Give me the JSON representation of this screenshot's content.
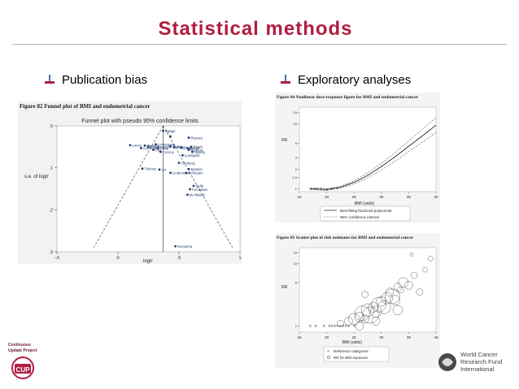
{
  "slide": {
    "title": "Statistical methods",
    "bullets": [
      "Publication bias",
      "Exploratory analyses"
    ],
    "colors": {
      "title": "#b01e41",
      "figure_bg": "#f2f2f2",
      "point": "#1f3a6e"
    }
  },
  "figures": {
    "funnel": {
      "caption": "Figure 82 Funnel plot of BMI and endometrial cancer",
      "inner_title": "Funnel plot with pseudo 95% confidence limits"
    },
    "dose": {
      "caption": "Figure 84 Nonlinear dose-response figure for BMI and endometrial cancer",
      "legend": [
        "Best fitting fractional polynomial",
        "95% confidence interval"
      ]
    },
    "scatter": {
      "caption": "Figure 85 Scatter plot of risk estimates for BMI and endometrial cancer",
      "legend": [
        "Reference categories",
        "RR for BMI exposure"
      ]
    }
  },
  "chart_data": [
    {
      "type": "scatter",
      "title": "Funnel plot with pseudo 95% confidence limits",
      "xlabel": "logrr",
      "ylabel": "s.e. of logrr",
      "xlim": [
        -0.5,
        1
      ],
      "ylim": [
        0.3,
        0
      ],
      "x_ticks": [
        "-.5",
        "0",
        ".5",
        "1"
      ],
      "y_ticks": [
        "0",
        ".1",
        ".2",
        ".3"
      ],
      "reference_line_x": 0.37,
      "points": [
        {
          "x": 0.37,
          "y": 0.012,
          "label": "Bjørge"
        },
        {
          "x": 0.43,
          "y": 0.025,
          "label": ""
        },
        {
          "x": 0.58,
          "y": 0.028,
          "label": "Reeves"
        },
        {
          "x": 0.1,
          "y": 0.046,
          "label": "Lacey"
        },
        {
          "x": 0.22,
          "y": 0.047,
          "label": "Reeves"
        },
        {
          "x": 0.31,
          "y": 0.044,
          "label": "Lindemann"
        },
        {
          "x": 0.25,
          "y": 0.05,
          "label": "Friedenreich"
        },
        {
          "x": 0.43,
          "y": 0.049,
          "label": "Chang"
        },
        {
          "x": 0.19,
          "y": 0.053,
          "label": "Canchola"
        },
        {
          "x": 0.33,
          "y": 0.053,
          "label": "Rapp"
        },
        {
          "x": 0.46,
          "y": 0.051,
          "label": "Song"
        },
        {
          "x": 0.52,
          "y": 0.052,
          "label": "Song"
        },
        {
          "x": 0.57,
          "y": 0.053,
          "label": "Bjørge"
        },
        {
          "x": 0.6,
          "y": 0.05,
          "label": "Reeth"
        },
        {
          "x": 0.29,
          "y": 0.057,
          "label": "Fan"
        },
        {
          "x": 0.58,
          "y": 0.057,
          "label": "Furberg"
        },
        {
          "x": 0.35,
          "y": 0.062,
          "label": "Conroy"
        },
        {
          "x": 0.61,
          "y": 0.062,
          "label": "Sweny"
        },
        {
          "x": 0.53,
          "y": 0.07,
          "label": "Lundqvist"
        },
        {
          "x": 0.5,
          "y": 0.088,
          "label": "Tornberg"
        },
        {
          "x": 0.2,
          "y": 0.102,
          "label": "Tulinius"
        },
        {
          "x": 0.34,
          "y": 0.104,
          "label": "Lin"
        },
        {
          "x": 0.58,
          "y": 0.103,
          "label": "Epstein"
        },
        {
          "x": 0.43,
          "y": 0.112,
          "label": "Lindemann"
        },
        {
          "x": 0.56,
          "y": 0.112,
          "label": "Schouten"
        },
        {
          "x": 0.62,
          "y": 0.143,
          "label": "Sella"
        },
        {
          "x": 0.59,
          "y": 0.151,
          "label": "Furukawa"
        },
        {
          "x": 0.57,
          "y": 0.164,
          "label": "de Waard"
        },
        {
          "x": 0.47,
          "y": 0.287,
          "label": "Kuriyama"
        }
      ]
    },
    {
      "type": "line",
      "xlabel": "BMI (units)",
      "ylabel": "RR",
      "xlim": [
        15,
        40
      ],
      "x_ticks": [
        "15",
        "20",
        "25",
        "30",
        "35",
        "40"
      ],
      "y_ticks": [
        "1",
        "1.5",
        "2",
        "3",
        "5",
        "10",
        "15"
      ],
      "y_scale": "log",
      "ylim": [
        0.9,
        18
      ],
      "legend_position": "bottom-right",
      "series": [
        {
          "name": "Best fitting fractional polynomial",
          "x": [
            17,
            20,
            22.5,
            25,
            27.5,
            30,
            32.5,
            35,
            37.5,
            40
          ],
          "y": [
            1.0,
            0.97,
            1.05,
            1.25,
            1.6,
            2.2,
            3.1,
            4.5,
            6.5,
            9.5
          ]
        },
        {
          "name": "95% confidence interval",
          "x": [
            17,
            20,
            22.5,
            25,
            27.5,
            30,
            32.5,
            35,
            37.5,
            40
          ],
          "y": [
            1.03,
            1.0,
            1.09,
            1.32,
            1.75,
            2.45,
            3.6,
            5.4,
            8.2,
            12.5
          ]
        },
        {
          "name": "95% confidence interval",
          "x": [
            17,
            20,
            22.5,
            25,
            27.5,
            30,
            32.5,
            35,
            37.5,
            40
          ],
          "y": [
            0.97,
            0.94,
            1.01,
            1.18,
            1.47,
            1.95,
            2.65,
            3.7,
            5.2,
            7.3
          ]
        }
      ],
      "points": [
        {
          "x": 17,
          "y": 1.0
        },
        {
          "x": 18,
          "y": 1.0
        },
        {
          "x": 19,
          "y": 1.0
        },
        {
          "x": 20,
          "y": 0.98
        },
        {
          "x": 21,
          "y": 1.0
        },
        {
          "x": 22,
          "y": 1.02
        }
      ]
    },
    {
      "type": "scatter",
      "xlabel": "BMI (units)",
      "ylabel": "RR",
      "xlim": [
        15,
        40
      ],
      "x_ticks": [
        "15",
        "20",
        "25",
        "30",
        "35",
        "40"
      ],
      "y_ticks": [
        "1",
        "5",
        "10",
        "15"
      ],
      "y_scale": "log",
      "ylim": [
        0.8,
        18
      ],
      "legend_position": "bottom-left",
      "reference_points": [
        {
          "x": 17.0,
          "y": 1
        },
        {
          "x": 18.0,
          "y": 1
        },
        {
          "x": 19.5,
          "y": 1
        },
        {
          "x": 20.5,
          "y": 1
        },
        {
          "x": 21.0,
          "y": 1
        },
        {
          "x": 21.5,
          "y": 1
        },
        {
          "x": 22.0,
          "y": 1
        },
        {
          "x": 22.5,
          "y": 1
        },
        {
          "x": 23.0,
          "y": 1
        },
        {
          "x": 23.5,
          "y": 1
        },
        {
          "x": 24.0,
          "y": 1
        },
        {
          "x": 25.0,
          "y": 1
        }
      ],
      "points": [
        {
          "x": 22.5,
          "y": 1.1,
          "s": 4
        },
        {
          "x": 24.0,
          "y": 1.2,
          "s": 5
        },
        {
          "x": 25.0,
          "y": 1.3,
          "s": 7
        },
        {
          "x": 26.0,
          "y": 1.4,
          "s": 6
        },
        {
          "x": 26.5,
          "y": 1.6,
          "s": 9
        },
        {
          "x": 27.0,
          "y": 1.3,
          "s": 5
        },
        {
          "x": 27.5,
          "y": 1.8,
          "s": 8
        },
        {
          "x": 28.0,
          "y": 1.5,
          "s": 10
        },
        {
          "x": 28.5,
          "y": 2.0,
          "s": 6
        },
        {
          "x": 29.0,
          "y": 1.7,
          "s": 7
        },
        {
          "x": 29.5,
          "y": 2.2,
          "s": 9
        },
        {
          "x": 30.0,
          "y": 2.5,
          "s": 6
        },
        {
          "x": 30.5,
          "y": 2.0,
          "s": 8
        },
        {
          "x": 31.0,
          "y": 2.8,
          "s": 7
        },
        {
          "x": 31.5,
          "y": 3.5,
          "s": 5
        },
        {
          "x": 32.0,
          "y": 3.0,
          "s": 9
        },
        {
          "x": 32.5,
          "y": 2.6,
          "s": 6
        },
        {
          "x": 33.0,
          "y": 4.2,
          "s": 5
        },
        {
          "x": 33.5,
          "y": 3.8,
          "s": 4
        },
        {
          "x": 34.0,
          "y": 5.0,
          "s": 6
        },
        {
          "x": 35.0,
          "y": 4.5,
          "s": 5
        },
        {
          "x": 36.0,
          "y": 6.5,
          "s": 4
        },
        {
          "x": 37.0,
          "y": 3.5,
          "s": 4
        },
        {
          "x": 38.0,
          "y": 8.0,
          "s": 3
        },
        {
          "x": 39.0,
          "y": 12.0,
          "s": 3
        },
        {
          "x": 35.5,
          "y": 14.0,
          "s": 2
        },
        {
          "x": 27.0,
          "y": 3.2,
          "s": 4
        },
        {
          "x": 29.0,
          "y": 1.2,
          "s": 5
        },
        {
          "x": 33.0,
          "y": 1.8,
          "s": 6
        },
        {
          "x": 26.0,
          "y": 1.0,
          "s": 5
        }
      ]
    }
  ],
  "logos": {
    "cup": [
      "Continuous",
      "Update Project",
      "CUP"
    ],
    "wcrf": [
      "World Cancer",
      "Research Fund",
      "International"
    ]
  }
}
